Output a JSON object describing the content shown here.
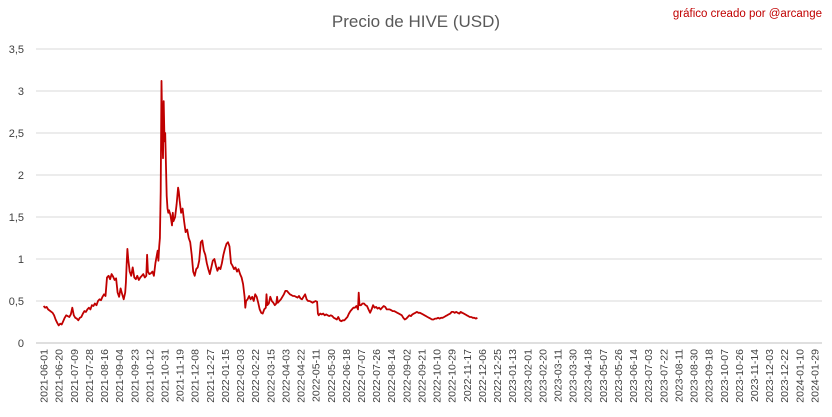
{
  "chart_data": {
    "type": "line",
    "title": "Precio de HIVE (USD)",
    "subtitle": "gráfico creado por @arcange",
    "xlabel": "",
    "ylabel": "",
    "ylim": [
      0,
      3.5
    ],
    "yticks": [
      "0",
      "0,5",
      "1",
      "1,5",
      "2",
      "2,5",
      "3",
      "3,5"
    ],
    "grid": "horizontal",
    "line_color": "#c00000",
    "categories": [
      "2021-06-01",
      "2021-06-20",
      "2021-07-09",
      "2021-07-28",
      "2021-08-16",
      "2021-09-04",
      "2021-09-23",
      "2021-10-12",
      "2021-10-31",
      "2021-11-19",
      "2021-12-08",
      "2021-12-27",
      "2022-01-15",
      "2022-02-03",
      "2022-02-22",
      "2022-03-15",
      "2022-04-03",
      "2022-04-22",
      "2022-05-11",
      "2022-05-30",
      "2022-06-18",
      "2022-07-07",
      "2022-07-26",
      "2022-08-14",
      "2022-09-02",
      "2022-09-21",
      "2022-10-10",
      "2022-10-29",
      "2022-11-17",
      "2022-12-06",
      "2022-12-25",
      "2023-01-13",
      "2023-02-01",
      "2023-02-20",
      "2023-03-11",
      "2023-03-30",
      "2023-04-18",
      "2023-05-07",
      "2023-05-26",
      "2023-06-14",
      "2023-07-03",
      "2023-07-22",
      "2023-08-11",
      "2023-08-30",
      "2023-09-18",
      "2023-10-07",
      "2023-10-26",
      "2023-11-14",
      "2023-12-03",
      "2023-12-22",
      "2024-01-10",
      "2024-01-29"
    ],
    "series": [
      {
        "points": [
          [
            0,
            0.44
          ],
          [
            0.1,
            0.42
          ],
          [
            0.2,
            0.43
          ],
          [
            0.3,
            0.4
          ],
          [
            0.45,
            0.38
          ],
          [
            0.6,
            0.36
          ],
          [
            0.7,
            0.33
          ],
          [
            0.8,
            0.28
          ],
          [
            0.9,
            0.24
          ],
          [
            1.0,
            0.21
          ],
          [
            1.1,
            0.23
          ],
          [
            1.2,
            0.22
          ],
          [
            1.3,
            0.26
          ],
          [
            1.4,
            0.3
          ],
          [
            1.5,
            0.33
          ],
          [
            1.6,
            0.32
          ],
          [
            1.7,
            0.31
          ],
          [
            1.8,
            0.34
          ],
          [
            1.9,
            0.42
          ],
          [
            2.0,
            0.33
          ],
          [
            2.1,
            0.3
          ],
          [
            2.2,
            0.29
          ],
          [
            2.3,
            0.27
          ],
          [
            2.4,
            0.3
          ],
          [
            2.5,
            0.31
          ],
          [
            2.6,
            0.35
          ],
          [
            2.7,
            0.38
          ],
          [
            2.8,
            0.37
          ],
          [
            2.9,
            0.4
          ],
          [
            3.0,
            0.42
          ],
          [
            3.1,
            0.4
          ],
          [
            3.2,
            0.45
          ],
          [
            3.3,
            0.44
          ],
          [
            3.4,
            0.47
          ],
          [
            3.5,
            0.45
          ],
          [
            3.6,
            0.5
          ],
          [
            3.7,
            0.52
          ],
          [
            3.8,
            0.51
          ],
          [
            3.9,
            0.55
          ],
          [
            4.0,
            0.58
          ],
          [
            4.1,
            0.56
          ],
          [
            4.2,
            0.78
          ],
          [
            4.3,
            0.8
          ],
          [
            4.4,
            0.76
          ],
          [
            4.5,
            0.82
          ],
          [
            4.6,
            0.79
          ],
          [
            4.7,
            0.75
          ],
          [
            4.8,
            0.77
          ],
          [
            4.9,
            0.6
          ],
          [
            5.0,
            0.55
          ],
          [
            5.1,
            0.65
          ],
          [
            5.2,
            0.58
          ],
          [
            5.3,
            0.52
          ],
          [
            5.4,
            0.6
          ],
          [
            5.45,
            0.72
          ],
          [
            5.5,
            0.95
          ],
          [
            5.55,
            1.12
          ],
          [
            5.6,
            1.0
          ],
          [
            5.7,
            0.85
          ],
          [
            5.8,
            0.8
          ],
          [
            5.9,
            0.9
          ],
          [
            6.0,
            0.78
          ],
          [
            6.1,
            0.76
          ],
          [
            6.2,
            0.8
          ],
          [
            6.3,
            0.75
          ],
          [
            6.4,
            0.78
          ],
          [
            6.5,
            0.8
          ],
          [
            6.6,
            0.82
          ],
          [
            6.7,
            0.78
          ],
          [
            6.8,
            0.8
          ],
          [
            6.85,
            1.05
          ],
          [
            6.9,
            0.85
          ],
          [
            7.0,
            0.82
          ],
          [
            7.1,
            0.83
          ],
          [
            7.2,
            0.85
          ],
          [
            7.3,
            0.8
          ],
          [
            7.4,
            0.95
          ],
          [
            7.5,
            1.05
          ],
          [
            7.55,
            1.1
          ],
          [
            7.6,
            0.98
          ],
          [
            7.65,
            1.15
          ],
          [
            7.7,
            1.25
          ],
          [
            7.75,
            1.8
          ],
          [
            7.8,
            3.12
          ],
          [
            7.85,
            2.6
          ],
          [
            7.9,
            2.2
          ],
          [
            7.95,
            2.88
          ],
          [
            8.0,
            2.4
          ],
          [
            8.05,
            2.5
          ],
          [
            8.1,
            2.1
          ],
          [
            8.15,
            1.75
          ],
          [
            8.2,
            1.6
          ],
          [
            8.25,
            1.55
          ],
          [
            8.3,
            1.58
          ],
          [
            8.4,
            1.52
          ],
          [
            8.5,
            1.4
          ],
          [
            8.55,
            1.55
          ],
          [
            8.6,
            1.45
          ],
          [
            8.7,
            1.5
          ],
          [
            8.8,
            1.65
          ],
          [
            8.9,
            1.85
          ],
          [
            8.95,
            1.8
          ],
          [
            9.0,
            1.7
          ],
          [
            9.1,
            1.55
          ],
          [
            9.2,
            1.6
          ],
          [
            9.3,
            1.45
          ],
          [
            9.4,
            1.32
          ],
          [
            9.5,
            1.35
          ],
          [
            9.6,
            1.25
          ],
          [
            9.7,
            1.2
          ],
          [
            9.8,
            1.05
          ],
          [
            9.9,
            0.85
          ],
          [
            10.0,
            0.8
          ],
          [
            10.1,
            0.88
          ],
          [
            10.2,
            0.9
          ],
          [
            10.3,
            0.98
          ],
          [
            10.4,
            1.2
          ],
          [
            10.5,
            1.22
          ],
          [
            10.6,
            1.1
          ],
          [
            10.7,
            1.05
          ],
          [
            10.8,
            0.95
          ],
          [
            10.9,
            0.88
          ],
          [
            11.0,
            0.82
          ],
          [
            11.1,
            0.9
          ],
          [
            11.2,
            0.98
          ],
          [
            11.3,
            1.0
          ],
          [
            11.4,
            0.92
          ],
          [
            11.5,
            0.86
          ],
          [
            11.6,
            0.9
          ],
          [
            11.7,
            0.88
          ],
          [
            11.8,
            0.95
          ],
          [
            11.9,
            1.05
          ],
          [
            12.0,
            1.12
          ],
          [
            12.1,
            1.18
          ],
          [
            12.2,
            1.2
          ],
          [
            12.3,
            1.15
          ],
          [
            12.4,
            0.95
          ],
          [
            12.5,
            0.92
          ],
          [
            12.6,
            0.88
          ],
          [
            12.7,
            0.9
          ],
          [
            12.8,
            0.85
          ],
          [
            12.9,
            0.88
          ],
          [
            13.0,
            0.82
          ],
          [
            13.1,
            0.78
          ],
          [
            13.2,
            0.7
          ],
          [
            13.3,
            0.55
          ],
          [
            13.35,
            0.42
          ],
          [
            13.4,
            0.5
          ],
          [
            13.5,
            0.52
          ],
          [
            13.6,
            0.56
          ],
          [
            13.7,
            0.52
          ],
          [
            13.8,
            0.55
          ],
          [
            13.9,
            0.5
          ],
          [
            14.0,
            0.58
          ],
          [
            14.1,
            0.55
          ],
          [
            14.2,
            0.48
          ],
          [
            14.3,
            0.4
          ],
          [
            14.4,
            0.36
          ],
          [
            14.5,
            0.35
          ],
          [
            14.6,
            0.4
          ],
          [
            14.7,
            0.42
          ],
          [
            14.75,
            0.58
          ],
          [
            14.8,
            0.45
          ],
          [
            14.9,
            0.47
          ],
          [
            15.0,
            0.55
          ],
          [
            15.1,
            0.5
          ],
          [
            15.2,
            0.48
          ],
          [
            15.3,
            0.45
          ],
          [
            15.4,
            0.47
          ],
          [
            15.45,
            0.55
          ],
          [
            15.5,
            0.48
          ],
          [
            15.6,
            0.5
          ],
          [
            15.7,
            0.52
          ],
          [
            15.8,
            0.55
          ],
          [
            15.9,
            0.58
          ],
          [
            16.0,
            0.62
          ],
          [
            16.1,
            0.62
          ],
          [
            16.2,
            0.6
          ],
          [
            16.3,
            0.58
          ],
          [
            16.4,
            0.57
          ],
          [
            16.5,
            0.56
          ],
          [
            16.6,
            0.56
          ],
          [
            16.7,
            0.55
          ],
          [
            16.8,
            0.54
          ],
          [
            16.9,
            0.56
          ],
          [
            17.0,
            0.53
          ],
          [
            17.1,
            0.52
          ],
          [
            17.2,
            0.55
          ],
          [
            17.3,
            0.58
          ],
          [
            17.4,
            0.52
          ],
          [
            17.5,
            0.5
          ],
          [
            17.6,
            0.5
          ],
          [
            17.7,
            0.49
          ],
          [
            17.8,
            0.48
          ],
          [
            17.9,
            0.49
          ],
          [
            18.0,
            0.5
          ],
          [
            18.1,
            0.49
          ],
          [
            18.15,
            0.35
          ],
          [
            18.2,
            0.33
          ],
          [
            18.3,
            0.35
          ],
          [
            18.4,
            0.34
          ],
          [
            18.5,
            0.35
          ],
          [
            18.6,
            0.33
          ],
          [
            18.7,
            0.34
          ],
          [
            18.8,
            0.33
          ],
          [
            18.9,
            0.32
          ],
          [
            19.0,
            0.33
          ],
          [
            19.1,
            0.32
          ],
          [
            19.2,
            0.3
          ],
          [
            19.3,
            0.29
          ],
          [
            19.4,
            0.28
          ],
          [
            19.5,
            0.31
          ],
          [
            19.6,
            0.27
          ],
          [
            19.7,
            0.26
          ],
          [
            19.8,
            0.27
          ],
          [
            19.9,
            0.27
          ],
          [
            20.0,
            0.29
          ],
          [
            20.1,
            0.31
          ],
          [
            20.2,
            0.35
          ],
          [
            20.3,
            0.38
          ],
          [
            20.4,
            0.4
          ],
          [
            20.5,
            0.42
          ],
          [
            20.6,
            0.42
          ],
          [
            20.7,
            0.44
          ],
          [
            20.8,
            0.4
          ],
          [
            20.85,
            0.6
          ],
          [
            20.9,
            0.45
          ],
          [
            21.0,
            0.45
          ],
          [
            21.1,
            0.47
          ],
          [
            21.2,
            0.47
          ],
          [
            21.3,
            0.45
          ],
          [
            21.4,
            0.44
          ],
          [
            21.5,
            0.4
          ],
          [
            21.6,
            0.36
          ],
          [
            21.7,
            0.4
          ],
          [
            21.8,
            0.45
          ],
          [
            21.9,
            0.42
          ],
          [
            22.0,
            0.43
          ],
          [
            22.1,
            0.41
          ],
          [
            22.2,
            0.42
          ],
          [
            22.3,
            0.4
          ],
          [
            22.4,
            0.42
          ],
          [
            22.5,
            0.44
          ],
          [
            22.6,
            0.43
          ],
          [
            22.7,
            0.4
          ],
          [
            22.8,
            0.4
          ],
          [
            22.9,
            0.4
          ],
          [
            23.0,
            0.39
          ],
          [
            23.1,
            0.38
          ],
          [
            23.2,
            0.38
          ],
          [
            23.3,
            0.37
          ],
          [
            23.4,
            0.36
          ],
          [
            23.5,
            0.35
          ],
          [
            23.6,
            0.34
          ],
          [
            23.7,
            0.33
          ],
          [
            23.8,
            0.3
          ],
          [
            23.9,
            0.28
          ],
          [
            24.0,
            0.29
          ],
          [
            24.1,
            0.31
          ],
          [
            24.2,
            0.33
          ],
          [
            24.3,
            0.32
          ],
          [
            24.4,
            0.34
          ],
          [
            24.5,
            0.35
          ],
          [
            24.6,
            0.36
          ],
          [
            24.7,
            0.37
          ],
          [
            24.8,
            0.36
          ],
          [
            24.9,
            0.36
          ],
          [
            25.0,
            0.35
          ],
          [
            25.1,
            0.34
          ],
          [
            25.2,
            0.33
          ],
          [
            25.3,
            0.32
          ],
          [
            25.4,
            0.31
          ],
          [
            25.5,
            0.3
          ],
          [
            25.6,
            0.29
          ],
          [
            25.7,
            0.28
          ],
          [
            25.8,
            0.28
          ],
          [
            25.9,
            0.29
          ],
          [
            26.0,
            0.29
          ],
          [
            26.1,
            0.3
          ],
          [
            26.2,
            0.29
          ],
          [
            26.3,
            0.3
          ],
          [
            26.4,
            0.3
          ],
          [
            26.5,
            0.31
          ],
          [
            26.6,
            0.32
          ],
          [
            26.7,
            0.33
          ],
          [
            26.8,
            0.34
          ],
          [
            26.9,
            0.35
          ],
          [
            27.0,
            0.37
          ],
          [
            27.1,
            0.37
          ],
          [
            27.2,
            0.36
          ],
          [
            27.3,
            0.37
          ],
          [
            27.4,
            0.36
          ],
          [
            27.5,
            0.35
          ],
          [
            27.6,
            0.37
          ],
          [
            27.7,
            0.36
          ],
          [
            27.8,
            0.35
          ],
          [
            27.9,
            0.34
          ],
          [
            28.0,
            0.33
          ],
          [
            28.1,
            0.32
          ],
          [
            28.2,
            0.31
          ],
          [
            28.3,
            0.31
          ],
          [
            28.4,
            0.3
          ],
          [
            28.5,
            0.3
          ],
          [
            28.6,
            0.29
          ],
          [
            28.7,
            0.3
          ]
        ]
      }
    ]
  }
}
